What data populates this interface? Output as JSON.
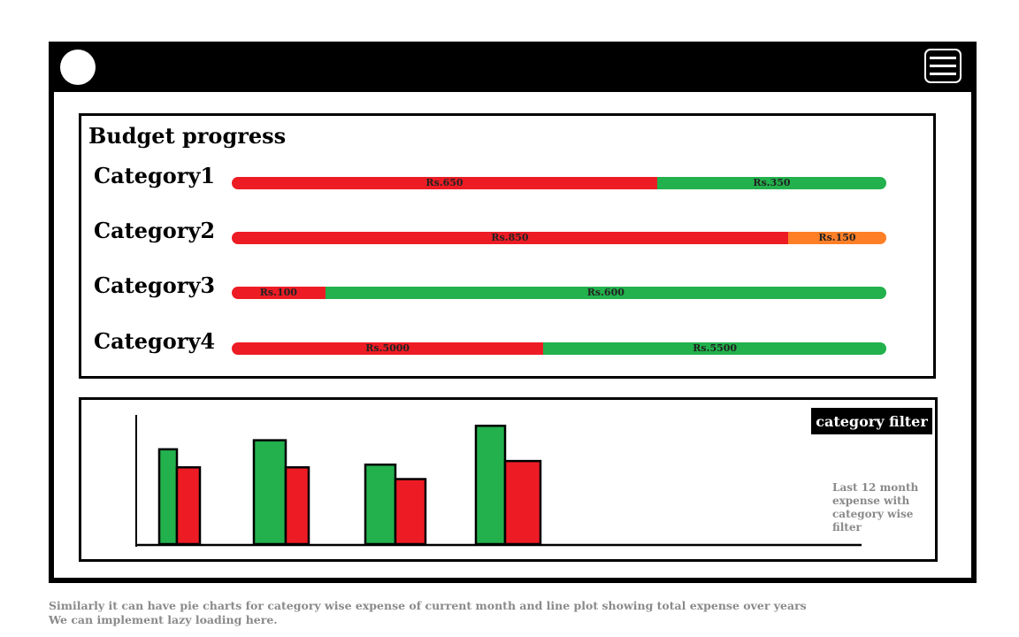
{
  "budget": {
    "title": "Budget progress",
    "categories": [
      {
        "label": "Category1",
        "spent_label": "Rs.650",
        "remaining_label": "Rs.350",
        "spent": 650,
        "remaining": 350,
        "remaining_color": "#22b14c"
      },
      {
        "label": "Category2",
        "spent_label": "Rs.850",
        "remaining_label": "Rs.150",
        "spent": 850,
        "remaining": 150,
        "remaining_color": "#ff7f27"
      },
      {
        "label": "Category3",
        "spent_label": "Rs.100",
        "remaining_label": "Rs.600",
        "spent": 100,
        "remaining": 600,
        "remaining_color": "#22b14c"
      },
      {
        "label": "Category4",
        "spent_label": "Rs.5000",
        "remaining_label": "Rs.5500",
        "spent": 5000,
        "remaining": 5500,
        "remaining_color": "#22b14c"
      }
    ],
    "spent_color": "#ed1c24"
  },
  "chart": {
    "filter_label": "category filter",
    "note_lines": [
      "Last 12 month",
      "expense with",
      "category wise filter"
    ]
  },
  "chart_data": {
    "type": "bar",
    "categories": [
      "",
      "",
      "",
      ""
    ],
    "series": [
      {
        "color": "#22b14c",
        "values": [
          105,
          115,
          88,
          131
        ]
      },
      {
        "color": "#ed1c24",
        "values": [
          85,
          85,
          72,
          92
        ]
      }
    ],
    "title": "",
    "xlabel": "",
    "ylabel": "",
    "ylim": [
      0,
      145
    ]
  },
  "footer": {
    "line1": "Similarly it can have pie charts for category wise expense of  current month  and line plot showing total expense over years",
    "line2": "We can implement lazy loading here."
  },
  "icons": {
    "avatar": "circle-avatar-icon",
    "menu": "hamburger-menu-icon"
  }
}
